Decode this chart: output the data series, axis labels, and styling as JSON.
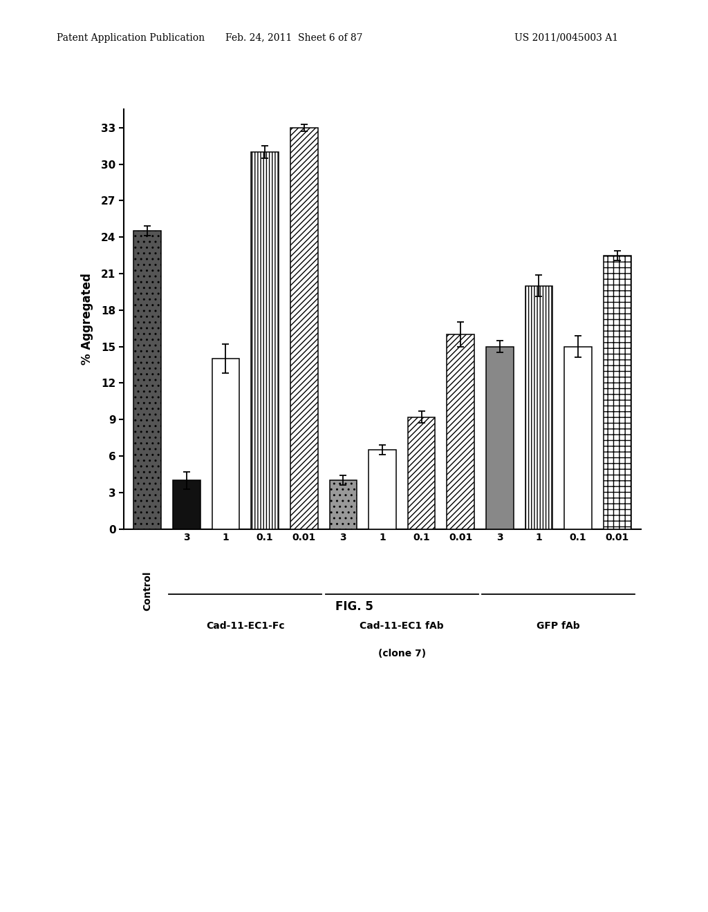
{
  "bar_values": [
    24.5,
    4.0,
    14.0,
    31.0,
    33.0,
    4.0,
    6.5,
    9.2,
    16.0,
    15.0,
    20.0,
    15.0,
    22.5
  ],
  "bar_errors": [
    0.4,
    0.7,
    1.2,
    0.5,
    0.3,
    0.4,
    0.4,
    0.5,
    1.0,
    0.5,
    0.9,
    0.9,
    0.4
  ],
  "bar_facecolors": [
    "#555555",
    "#111111",
    "#ffffff",
    "#ffffff",
    "#ffffff",
    "#999999",
    "#ffffff",
    "#ffffff",
    "#ffffff",
    "#888888",
    "#ffffff",
    "#ffffff",
    "#ffffff"
  ],
  "bar_hatches": [
    "..",
    null,
    null,
    "||||",
    "////",
    "..",
    null,
    "////",
    "////",
    null,
    "||||",
    null,
    "++"
  ],
  "bar_edgecolor": "#000000",
  "ylabel": "% Aggregated",
  "yticks": [
    0,
    3,
    6,
    9,
    12,
    15,
    18,
    21,
    24,
    27,
    30,
    33
  ],
  "ylim": [
    0,
    34.5
  ],
  "xtick_labels": [
    "",
    "3",
    "1",
    "0.1",
    "0.01",
    "3",
    "1",
    "0.1",
    "0.01",
    "3",
    "1",
    "0.1",
    "0.01"
  ],
  "control_label": "Control",
  "group_names": [
    "Cad-11-EC1-Fc",
    "Cad-11-EC1 fAb",
    "(clone 7)",
    "GFP fAb"
  ],
  "group_centers": [
    2.5,
    6.5,
    6.5,
    10.5
  ],
  "underline_ranges": [
    [
      1,
      4
    ],
    [
      5,
      8
    ],
    [
      9,
      12
    ]
  ],
  "fig_title": "FIG. 5",
  "header_left": "Patent Application Publication",
  "header_center": "Feb. 24, 2011  Sheet 6 of 87",
  "header_right": "US 2011/0045003 A1",
  "background_color": "#ffffff"
}
